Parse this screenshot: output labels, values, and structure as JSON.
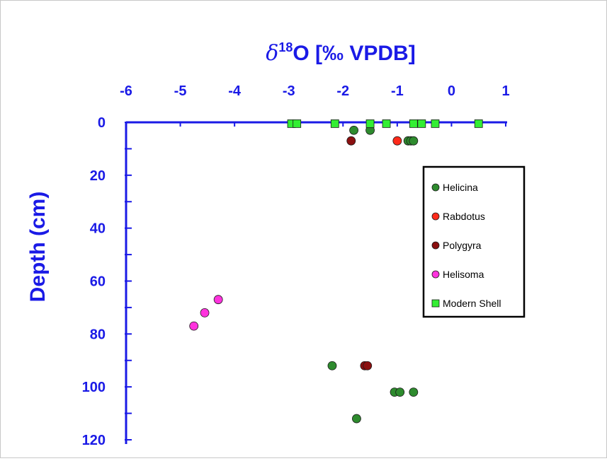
{
  "chart_data": {
    "type": "scatter",
    "title": "δ18O [‰ VPDB]",
    "title_parts": {
      "symbol": "δ",
      "superscript": "18",
      "rest": "O [‰ VPDB]"
    },
    "xlabel": "δ18O [‰ VPDB]",
    "ylabel": "Depth (cm)",
    "x_axis_position": "top",
    "y_axis_inverted": true,
    "xlim": [
      -6,
      1
    ],
    "ylim": [
      0,
      120
    ],
    "x_ticks": [
      "-6",
      "-5",
      "-4",
      "-3",
      "-2",
      "-1",
      "0",
      "1"
    ],
    "y_ticks": [
      "0",
      "20",
      "40",
      "60",
      "80",
      "100",
      "120"
    ],
    "grid": false,
    "legend_position": "right",
    "axis_color": "#1a1ae6",
    "series": [
      {
        "name": "Helicina",
        "marker": "circle",
        "color": "#2e8b2e",
        "points": [
          {
            "x": -1.8,
            "y": 3
          },
          {
            "x": -1.5,
            "y": 3
          },
          {
            "x": -0.8,
            "y": 7
          },
          {
            "x": -0.75,
            "y": 7
          },
          {
            "x": -0.7,
            "y": 7
          },
          {
            "x": -2.2,
            "y": 92
          },
          {
            "x": -1.05,
            "y": 102
          },
          {
            "x": -0.95,
            "y": 102
          },
          {
            "x": -0.7,
            "y": 102
          },
          {
            "x": -1.75,
            "y": 112
          }
        ]
      },
      {
        "name": "Rabdotus",
        "marker": "circle",
        "color": "#ff2a1a",
        "points": [
          {
            "x": -1.0,
            "y": 7
          }
        ]
      },
      {
        "name": "Polygyra",
        "marker": "circle",
        "color": "#8b1010",
        "points": [
          {
            "x": -1.85,
            "y": 7
          },
          {
            "x": -1.6,
            "y": 92
          },
          {
            "x": -1.55,
            "y": 92
          }
        ]
      },
      {
        "name": "Helisoma",
        "marker": "circle",
        "color": "#ff33dd",
        "points": [
          {
            "x": -4.3,
            "y": 67
          },
          {
            "x": -4.55,
            "y": 72
          },
          {
            "x": -4.75,
            "y": 77
          }
        ]
      },
      {
        "name": "Modern Shell",
        "marker": "square",
        "color": "#33ee33",
        "points": [
          {
            "x": -2.95,
            "y": 0.5
          },
          {
            "x": -2.85,
            "y": 0.5
          },
          {
            "x": -2.15,
            "y": 0.5
          },
          {
            "x": -1.5,
            "y": 0.5
          },
          {
            "x": -1.2,
            "y": 0.5
          },
          {
            "x": -0.7,
            "y": 0.5
          },
          {
            "x": -0.55,
            "y": 0.5
          },
          {
            "x": -0.3,
            "y": 0.5
          },
          {
            "x": 0.5,
            "y": 0.5
          }
        ]
      }
    ]
  }
}
